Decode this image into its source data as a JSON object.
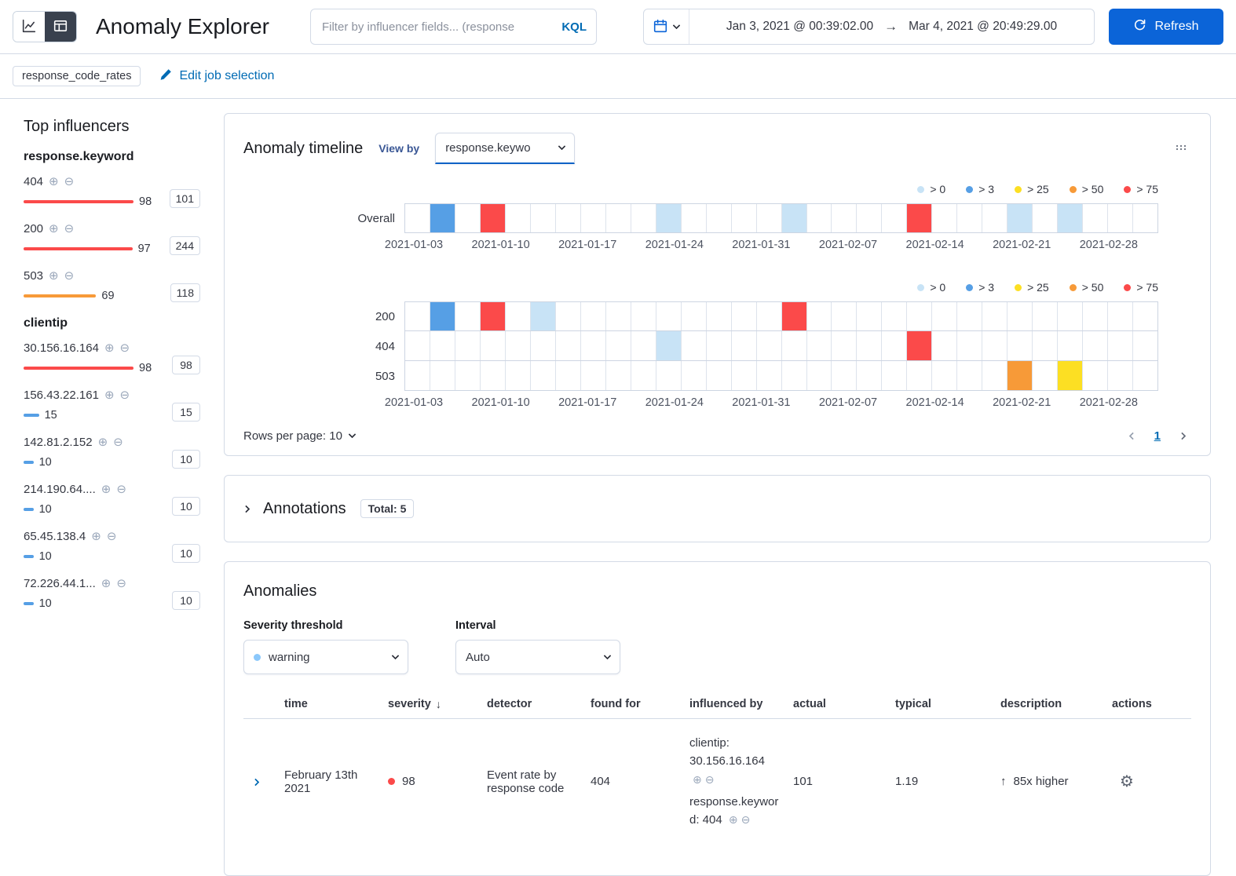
{
  "colors": {
    "accent": "#006bb4",
    "button_blue": "#0b64d8",
    "gt0": "#c8e3f6",
    "gt3": "#569fe5",
    "gt25": "#fcdf23",
    "gt50": "#f79a38",
    "gt75": "#fb4a4a",
    "warning_dot": "#8bc8fb"
  },
  "header": {
    "title": "Anomaly Explorer",
    "filter_placeholder": "Filter by influencer fields... (response",
    "kql_label": "KQL",
    "date_start": "Jan 3, 2021 @ 00:39:02.00",
    "date_end": "Mar 4, 2021 @ 20:49:29.00",
    "refresh_label": "Refresh"
  },
  "job_bar": {
    "job_badge": "response_code_rates",
    "edit_link": "Edit job selection"
  },
  "sidebar": {
    "title": "Top influencers",
    "groups": [
      {
        "name": "response.keyword",
        "items": [
          {
            "label": "404",
            "value": "98",
            "badge": "101",
            "bar_pct": 100,
            "severity_key": "gt75"
          },
          {
            "label": "200",
            "value": "97",
            "badge": "244",
            "bar_pct": 99,
            "severity_key": "gt75"
          },
          {
            "label": "503",
            "value": "69",
            "badge": "118",
            "bar_pct": 66,
            "severity_key": "gt50"
          }
        ]
      },
      {
        "name": "clientip",
        "items": [
          {
            "label": "30.156.16.164",
            "value": "98",
            "badge": "98",
            "bar_pct": 100,
            "severity_key": "gt75"
          },
          {
            "label": "156.43.22.161",
            "value": "15",
            "badge": "15",
            "bar_pct": 14,
            "severity_key": "gt3"
          },
          {
            "label": "142.81.2.152",
            "value": "10",
            "badge": "10",
            "bar_pct": 9,
            "severity_key": "gt3"
          },
          {
            "label": "214.190.64....",
            "value": "10",
            "badge": "10",
            "bar_pct": 9,
            "severity_key": "gt3"
          },
          {
            "label": "65.45.138.4",
            "value": "10",
            "badge": "10",
            "bar_pct": 9,
            "severity_key": "gt3"
          },
          {
            "label": "72.226.44.1...",
            "value": "10",
            "badge": "10",
            "bar_pct": 9,
            "severity_key": "gt3"
          }
        ]
      }
    ]
  },
  "timeline": {
    "title": "Anomaly timeline",
    "view_by_label": "View by",
    "view_by_value": "response.keywo",
    "legend": [
      {
        "label": "> 0",
        "key": "gt0"
      },
      {
        "label": "> 3",
        "key": "gt3"
      },
      {
        "label": "> 25",
        "key": "gt25"
      },
      {
        "label": "> 50",
        "key": "gt50"
      },
      {
        "label": "> 75",
        "key": "gt75"
      }
    ],
    "num_cells": 30,
    "total_days": 60,
    "axis_labels": [
      "2021-01-03",
      "2021-01-10",
      "2021-01-17",
      "2021-01-24",
      "2021-01-31",
      "2021-02-07",
      "2021-02-14",
      "2021-02-21",
      "2021-02-28"
    ],
    "label_day_offsets": [
      0,
      7,
      14,
      21,
      28,
      35,
      42,
      49,
      56
    ],
    "lanes_overall": [
      {
        "label": "Overall",
        "marks": [
          {
            "i": 1,
            "k": "gt3"
          },
          {
            "i": 3,
            "k": "gt75"
          },
          {
            "i": 10,
            "k": "gt0"
          },
          {
            "i": 15,
            "k": "gt0"
          },
          {
            "i": 20,
            "k": "gt75"
          },
          {
            "i": 24,
            "k": "gt0"
          },
          {
            "i": 26,
            "k": "gt0"
          }
        ]
      }
    ],
    "lanes_viewby": [
      {
        "label": "200",
        "marks": [
          {
            "i": 1,
            "k": "gt3"
          },
          {
            "i": 3,
            "k": "gt75"
          },
          {
            "i": 5,
            "k": "gt0"
          },
          {
            "i": 15,
            "k": "gt75"
          }
        ]
      },
      {
        "label": "404",
        "marks": [
          {
            "i": 10,
            "k": "gt0"
          },
          {
            "i": 20,
            "k": "gt75"
          }
        ]
      },
      {
        "label": "503",
        "marks": [
          {
            "i": 24,
            "k": "gt50"
          },
          {
            "i": 26,
            "k": "gt25"
          }
        ]
      }
    ],
    "rows_per_page_label": "Rows per page: 10",
    "page": "1"
  },
  "annotations": {
    "title": "Annotations",
    "badge": "Total: 5"
  },
  "anomalies": {
    "title": "Anomalies",
    "severity_threshold_label": "Severity threshold",
    "severity_value": "warning",
    "interval_label": "Interval",
    "interval_value": "Auto",
    "columns": [
      "",
      "time",
      "severity",
      "detector",
      "found for",
      "influenced by",
      "actual",
      "typical",
      "description",
      "actions"
    ],
    "sort_column": "severity",
    "sort_icon": "↓",
    "rows": [
      {
        "time": "February 13th 2021",
        "severity": "98",
        "severity_key": "gt75",
        "detector": "Event rate by response code",
        "found_for": "404",
        "influenced_by": [
          "clientip: 30.156.16.164",
          "response.keyword: 404"
        ],
        "actual": "101",
        "typical": "1.19",
        "direction_icon": "up-arrow",
        "description": "85x higher"
      }
    ]
  }
}
